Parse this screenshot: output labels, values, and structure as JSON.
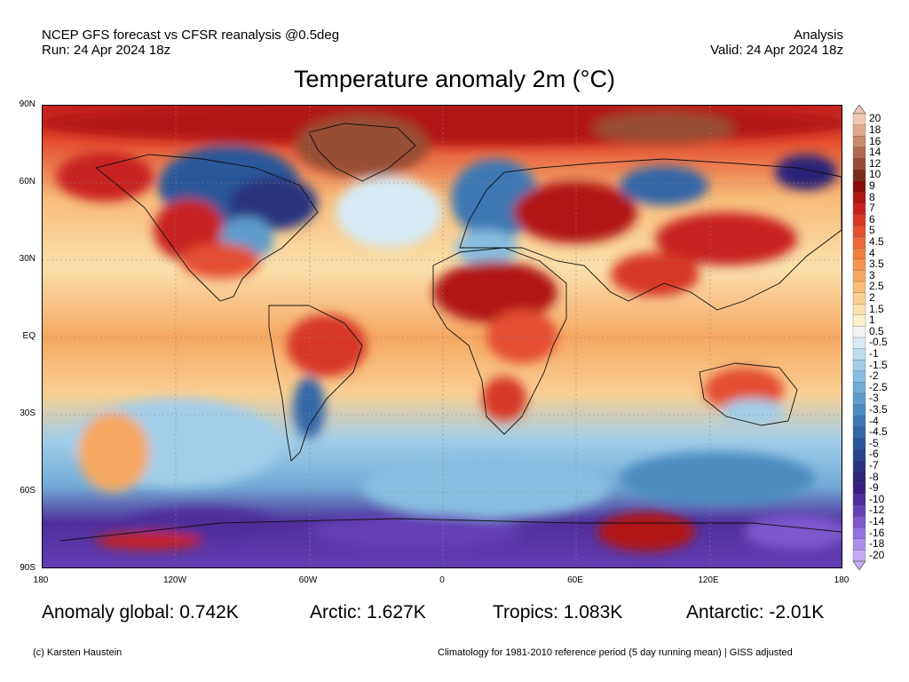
{
  "header": {
    "left_line1": "NCEP GFS forecast vs CFSR reanalysis @0.5deg",
    "left_line2": "Run: 24 Apr 2024 18z",
    "right_line1": "Analysis",
    "right_line2": "Valid: 24 Apr 2024 18z"
  },
  "title": "Temperature anomaly 2m (°C)",
  "axes": {
    "lat_labels": [
      "90N",
      "60N",
      "30N",
      "EQ",
      "30S",
      "60S",
      "90S"
    ],
    "lon_labels": [
      "180",
      "120W",
      "60W",
      "0",
      "60E",
      "120E",
      "180"
    ]
  },
  "colorbar": {
    "labels": [
      "20",
      "18",
      "16",
      "14",
      "12",
      "10",
      "9",
      "8",
      "7",
      "6",
      "5",
      "4.5",
      "4",
      "3.5",
      "3",
      "2.5",
      "2",
      "1.5",
      "1",
      "0.5",
      "-0.5",
      "-1",
      "-1.5",
      "-2",
      "-2.5",
      "-3",
      "-3.5",
      "-4",
      "-4.5",
      "-5",
      "-6",
      "-7",
      "-8",
      "-9",
      "-10",
      "-12",
      "-14",
      "-16",
      "-18",
      "-20"
    ],
    "colors": [
      "#f0c8b4",
      "#e0a88c",
      "#c98a6c",
      "#b06a4e",
      "#984e36",
      "#7a2e1a",
      "#8c0a0a",
      "#b01414",
      "#c82020",
      "#d83828",
      "#e45030",
      "#ec6838",
      "#f07e40",
      "#f49450",
      "#f6a862",
      "#f8bc78",
      "#f9cf92",
      "#fae0ac",
      "#fbefcc",
      "#f4f4f4",
      "#d8ebf5",
      "#bcdcef",
      "#a2cde8",
      "#88bde0",
      "#72acd6",
      "#5e9ccc",
      "#4c8bc0",
      "#3e78b4",
      "#3466a8",
      "#2c569a",
      "#2a448c",
      "#2a3480",
      "#2c2478",
      "#3a1e80",
      "#4e2e9a",
      "#6440b4",
      "#7c58cc",
      "#9472e0",
      "#ac8eec",
      "#c4acf4"
    ]
  },
  "stats": {
    "global": "Anomaly global: 0.742K",
    "arctic": "Arctic: 1.627K",
    "tropics": "Tropics: 1.083K",
    "antarctic": "Antarctic: -2.01K"
  },
  "footer": {
    "left": "(c) Karsten Haustein",
    "right": "Climatology for 1981-2010 reference period (5 day running mean) | GISS adjusted"
  }
}
